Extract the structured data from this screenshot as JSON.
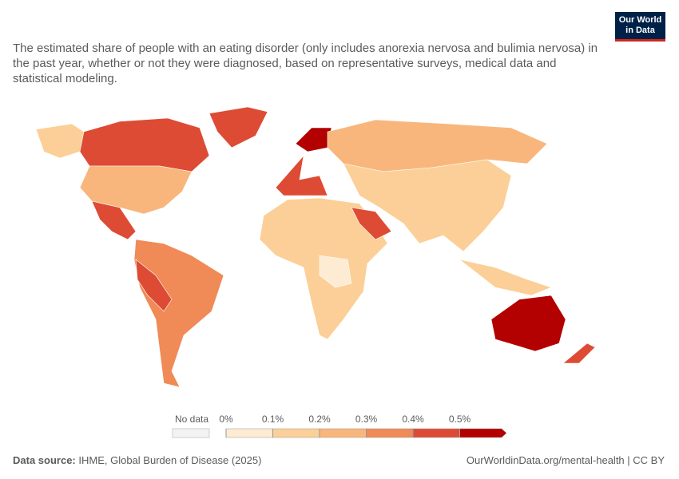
{
  "header": {
    "title": "The estimated share of people with an eating disorder (only includes anorexia nervosa and bulimia nervosa) in the past year, whether or not they were diagnosed, based on representative surveys, medical data and statistical modeling.",
    "logo": [
      "Our World",
      "in Data"
    ]
  },
  "legend": {
    "no_data_label": "No data",
    "ticks": [
      {
        "value": 0,
        "label": "0%"
      },
      {
        "value": 0.1,
        "label": "0.1%"
      },
      {
        "value": 0.2,
        "label": "0.2%"
      },
      {
        "value": 0.3,
        "label": "0.3%"
      },
      {
        "value": 0.4,
        "label": "0.4%"
      },
      {
        "value": 0.5,
        "label": "0.5%"
      }
    ],
    "colors": [
      "#fdebd3",
      "#fbcf97",
      "#f8b67c",
      "#f08a57",
      "#de4b34",
      "#b30000"
    ]
  },
  "footer": {
    "source_label": "Data source:",
    "source": "IHME, Global Burden of Disease (2025)",
    "url": "OurWorldinData.org/mental-health | CC BY"
  }
}
